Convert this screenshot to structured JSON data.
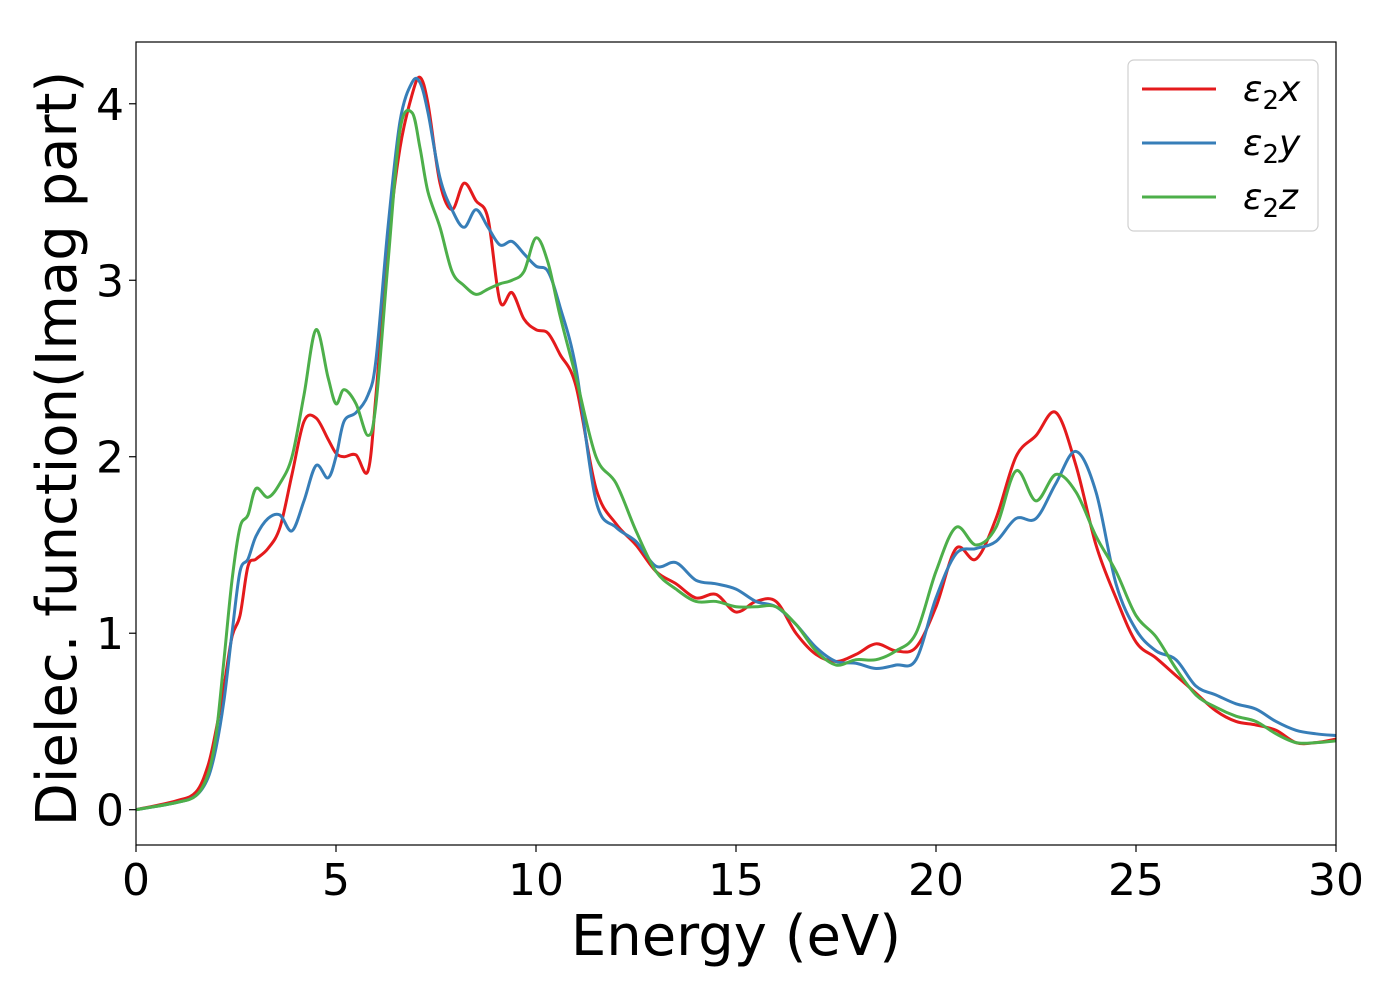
{
  "chart_data": {
    "type": "line",
    "title": "",
    "xlabel": "Energy (eV)",
    "ylabel": "Dielec. function(Imag part)",
    "xlim": [
      0,
      30
    ],
    "ylim": [
      -0.2,
      4.35
    ],
    "xticks": [
      0,
      5,
      10,
      15,
      20,
      25,
      30
    ],
    "yticks": [
      0,
      1,
      2,
      3,
      4
    ],
    "grid": false,
    "legend_position": "top-right",
    "series": [
      {
        "name": "ε₂x",
        "legend_base": "ε",
        "legend_sub": "2",
        "legend_suffix": "x",
        "color": "#e41a1c",
        "x": [
          0,
          1,
          1.5,
          1.8,
          2.0,
          2.2,
          2.4,
          2.6,
          2.8,
          3.0,
          3.3,
          3.6,
          3.9,
          4.2,
          4.5,
          4.8,
          5.0,
          5.2,
          5.5,
          5.8,
          6.0,
          6.3,
          6.6,
          6.9,
          7.1,
          7.3,
          7.6,
          7.9,
          8.2,
          8.5,
          8.8,
          9.1,
          9.4,
          9.7,
          10.0,
          10.3,
          10.6,
          11.0,
          11.5,
          12.0,
          12.5,
          13.0,
          13.5,
          14.0,
          14.5,
          15.0,
          15.5,
          16.0,
          16.5,
          17.0,
          17.5,
          18.0,
          18.5,
          19.0,
          19.5,
          20.0,
          20.5,
          21.0,
          21.5,
          22.0,
          22.5,
          23.0,
          23.5,
          24.0,
          24.5,
          25.0,
          25.5,
          26.0,
          26.5,
          27.0,
          27.5,
          28.0,
          28.5,
          29.0,
          29.5,
          30.0
        ],
        "y": [
          0.0,
          0.05,
          0.1,
          0.25,
          0.45,
          0.7,
          0.98,
          1.1,
          1.38,
          1.42,
          1.48,
          1.6,
          1.9,
          2.2,
          2.22,
          2.1,
          2.02,
          2.0,
          2.01,
          1.92,
          2.35,
          3.2,
          3.75,
          4.05,
          4.15,
          4.0,
          3.55,
          3.4,
          3.55,
          3.45,
          3.35,
          2.88,
          2.93,
          2.78,
          2.72,
          2.7,
          2.58,
          2.4,
          1.82,
          1.62,
          1.5,
          1.35,
          1.28,
          1.2,
          1.22,
          1.12,
          1.18,
          1.18,
          1.0,
          0.88,
          0.84,
          0.88,
          0.94,
          0.9,
          0.92,
          1.15,
          1.48,
          1.42,
          1.65,
          2.0,
          2.12,
          2.25,
          1.95,
          1.5,
          1.2,
          0.95,
          0.86,
          0.76,
          0.66,
          0.56,
          0.5,
          0.48,
          0.45,
          0.38,
          0.38,
          0.4
        ]
      },
      {
        "name": "ε₂y",
        "legend_base": "ε",
        "legend_sub": "2",
        "legend_suffix": "y",
        "color": "#377eb8",
        "x": [
          0,
          1,
          1.5,
          1.8,
          2.0,
          2.2,
          2.4,
          2.6,
          2.8,
          3.0,
          3.3,
          3.6,
          3.9,
          4.2,
          4.5,
          4.8,
          5.0,
          5.2,
          5.5,
          5.8,
          6.0,
          6.3,
          6.6,
          6.9,
          7.1,
          7.3,
          7.6,
          7.9,
          8.2,
          8.5,
          8.8,
          9.1,
          9.4,
          9.7,
          10.0,
          10.3,
          10.6,
          11.0,
          11.5,
          12.0,
          12.5,
          13.0,
          13.5,
          14.0,
          14.5,
          15.0,
          15.5,
          16.0,
          16.5,
          17.0,
          17.5,
          18.0,
          18.5,
          19.0,
          19.5,
          20.0,
          20.5,
          21.0,
          21.5,
          22.0,
          22.5,
          23.0,
          23.5,
          24.0,
          24.5,
          25.0,
          25.5,
          26.0,
          26.5,
          27.0,
          27.5,
          28.0,
          28.5,
          29.0,
          29.5,
          30.0
        ],
        "y": [
          0.0,
          0.04,
          0.08,
          0.18,
          0.35,
          0.62,
          1.0,
          1.35,
          1.42,
          1.55,
          1.65,
          1.67,
          1.58,
          1.75,
          1.95,
          1.88,
          2.0,
          2.2,
          2.25,
          2.35,
          2.55,
          3.3,
          3.9,
          4.12,
          4.12,
          3.95,
          3.58,
          3.4,
          3.3,
          3.4,
          3.3,
          3.2,
          3.22,
          3.15,
          3.08,
          3.05,
          2.85,
          2.5,
          1.75,
          1.6,
          1.52,
          1.38,
          1.4,
          1.3,
          1.28,
          1.25,
          1.18,
          1.15,
          1.05,
          0.92,
          0.84,
          0.83,
          0.8,
          0.82,
          0.85,
          1.2,
          1.45,
          1.48,
          1.52,
          1.65,
          1.65,
          1.85,
          2.03,
          1.8,
          1.28,
          1.02,
          0.9,
          0.85,
          0.7,
          0.65,
          0.6,
          0.57,
          0.5,
          0.45,
          0.43,
          0.42
        ]
      },
      {
        "name": "ε₂z",
        "legend_base": "ε",
        "legend_sub": "2",
        "legend_suffix": "z",
        "color": "#4daf4a",
        "x": [
          0,
          1,
          1.5,
          1.8,
          2.0,
          2.2,
          2.4,
          2.6,
          2.8,
          3.0,
          3.3,
          3.6,
          3.9,
          4.2,
          4.5,
          4.8,
          5.0,
          5.2,
          5.5,
          5.8,
          6.0,
          6.3,
          6.6,
          6.9,
          7.1,
          7.3,
          7.6,
          7.9,
          8.2,
          8.5,
          8.8,
          9.1,
          9.4,
          9.7,
          10.0,
          10.3,
          10.6,
          11.0,
          11.5,
          12.0,
          12.5,
          13.0,
          13.5,
          14.0,
          14.5,
          15.0,
          15.5,
          16.0,
          16.5,
          17.0,
          17.5,
          18.0,
          18.5,
          19.0,
          19.5,
          20.0,
          20.5,
          21.0,
          21.5,
          22.0,
          22.5,
          23.0,
          23.5,
          24.0,
          24.5,
          25.0,
          25.5,
          26.0,
          26.5,
          27.0,
          27.5,
          28.0,
          28.5,
          29.0,
          29.5,
          30.0
        ],
        "y": [
          0.0,
          0.04,
          0.08,
          0.2,
          0.42,
          0.85,
          1.3,
          1.6,
          1.67,
          1.82,
          1.77,
          1.85,
          2.0,
          2.35,
          2.72,
          2.45,
          2.3,
          2.38,
          2.3,
          2.12,
          2.3,
          3.1,
          3.85,
          3.95,
          3.75,
          3.5,
          3.3,
          3.05,
          2.97,
          2.92,
          2.95,
          2.98,
          3.0,
          3.05,
          3.24,
          3.1,
          2.8,
          2.45,
          2.0,
          1.85,
          1.58,
          1.35,
          1.25,
          1.18,
          1.18,
          1.15,
          1.15,
          1.15,
          1.05,
          0.9,
          0.82,
          0.85,
          0.85,
          0.9,
          1.0,
          1.35,
          1.6,
          1.5,
          1.6,
          1.92,
          1.75,
          1.9,
          1.8,
          1.55,
          1.35,
          1.1,
          0.98,
          0.8,
          0.65,
          0.58,
          0.53,
          0.5,
          0.43,
          0.38,
          0.38,
          0.39
        ]
      }
    ]
  }
}
